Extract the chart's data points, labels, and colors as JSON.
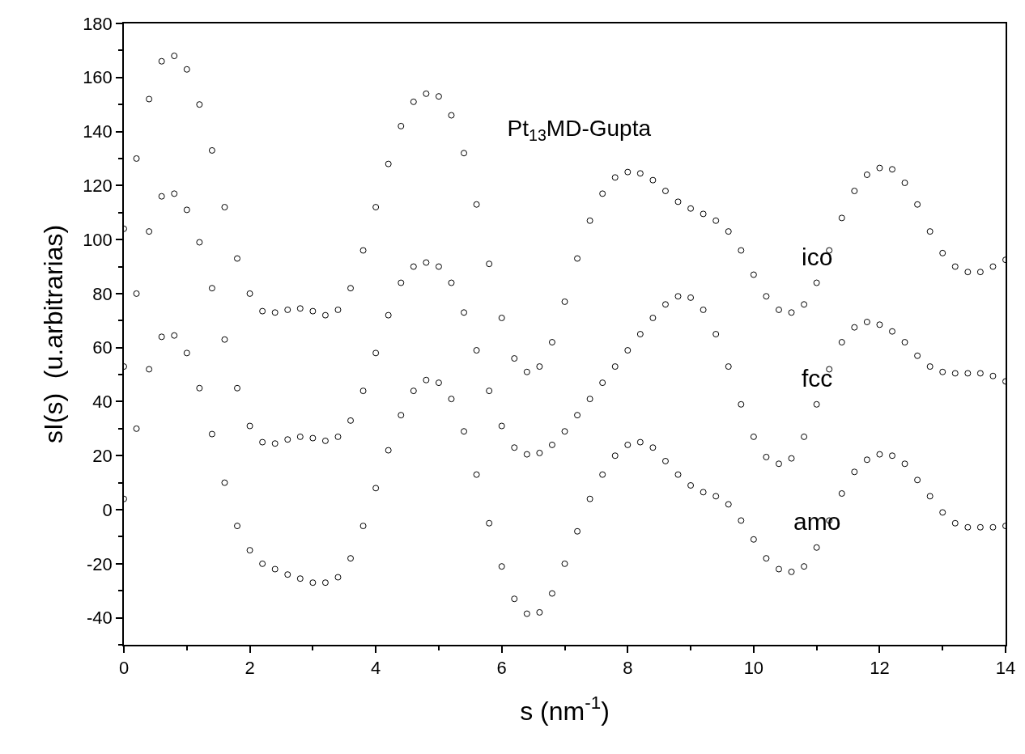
{
  "chart_data": {
    "type": "scatter",
    "title": "Pt$_{13}$MD-Gupta",
    "xlabel": "s (nm$^{-1}$)",
    "ylabel": "sI(s)  (u.arbitrarias)",
    "x": [
      0,
      0.2,
      0.4,
      0.6,
      0.8,
      1.0,
      1.2,
      1.4,
      1.6,
      1.8,
      2.0,
      2.2,
      2.4,
      2.6,
      2.8,
      3.0,
      3.2,
      3.4,
      3.6,
      3.8,
      4.0,
      4.2,
      4.4,
      4.6,
      4.8,
      5.0,
      5.2,
      5.4,
      5.6,
      5.8,
      6.0,
      6.2,
      6.4,
      6.6,
      6.8,
      7.0,
      7.2,
      7.4,
      7.6,
      7.8,
      8.0,
      8.2,
      8.4,
      8.6,
      8.8,
      9.0,
      9.2,
      9.4,
      9.6,
      9.8,
      10.0,
      10.2,
      10.4,
      10.6,
      10.8,
      11.0,
      11.2,
      11.4,
      11.6,
      11.8,
      12.0,
      12.2,
      12.4,
      12.6,
      12.8,
      13.0,
      13.2,
      13.4,
      13.6,
      13.8,
      14.0
    ],
    "series": [
      {
        "name": "ico",
        "color": "#000000",
        "values": [
          104,
          130,
          152,
          166,
          168,
          163,
          150,
          133,
          112,
          93,
          80,
          73.5,
          73,
          74,
          74.5,
          73.5,
          72,
          74,
          82,
          96,
          112,
          128,
          142,
          151,
          154,
          153,
          146,
          132,
          113,
          91,
          71,
          56,
          51,
          53,
          62,
          77,
          93,
          107,
          117,
          123,
          125,
          124.5,
          122,
          118,
          114,
          111.5,
          109.5,
          107,
          103,
          96,
          87,
          79,
          74,
          73,
          76,
          84,
          96,
          108,
          118,
          124,
          126.5,
          126,
          121,
          113,
          103,
          95,
          90,
          88,
          88,
          90,
          92.5
        ]
      },
      {
        "name": "fcc",
        "color": "#000000",
        "values": [
          53,
          80,
          103,
          116,
          117,
          111,
          99,
          82,
          63,
          45,
          31,
          25,
          24.5,
          26,
          27,
          26.5,
          25.5,
          27,
          33,
          44,
          58,
          72,
          84,
          90,
          91.5,
          90,
          84,
          73,
          59,
          44,
          31,
          23,
          20.5,
          21,
          24,
          29,
          35,
          41,
          47,
          53,
          59,
          65,
          71,
          76,
          79,
          78.5,
          74,
          65,
          53,
          39,
          27,
          19.5,
          17,
          19,
          27,
          39,
          52,
          62,
          67.5,
          69.5,
          68.5,
          66,
          62,
          57,
          53,
          51,
          50.5,
          50.5,
          50.5,
          49.5,
          47.5
        ]
      },
      {
        "name": "amo",
        "color": "#000000",
        "values": [
          4,
          30,
          52,
          64,
          64.5,
          58,
          45,
          28,
          10,
          -6,
          -15,
          -20,
          -22,
          -24,
          -25.5,
          -27,
          -27,
          -25,
          -18,
          -6,
          8,
          22,
          35,
          44,
          48,
          47,
          41,
          29,
          13,
          -5,
          -21,
          -33,
          -38.5,
          -38,
          -31,
          -20,
          -8,
          4,
          13,
          20,
          24,
          25,
          23,
          18,
          13,
          9,
          6.5,
          5,
          2,
          -4,
          -11,
          -18,
          -22,
          -23,
          -21,
          -14,
          -4,
          6,
          14,
          18.5,
          20.5,
          20,
          17,
          11,
          5,
          -1,
          -5,
          -6.5,
          -6.5,
          -6.5,
          -6
        ]
      }
    ],
    "xlim": [
      0,
      14
    ],
    "ylim": [
      -50,
      180
    ],
    "xticks": [
      0,
      {
        "value": 1,
        "label": null
      },
      2,
      {
        "value": 3,
        "label": null
      },
      4,
      {
        "value": 5,
        "label": null
      },
      6,
      {
        "value": 7,
        "label": null
      },
      8,
      {
        "value": 9,
        "label": null
      },
      10,
      {
        "value": 11,
        "label": null
      },
      12,
      {
        "value": 13,
        "label": null
      },
      14
    ],
    "yticks": [
      {
        "value": -50,
        "label": null
      },
      -40,
      {
        "value": -30,
        "label": null
      },
      -20,
      {
        "value": -10,
        "label": null
      },
      0,
      {
        "value": 10,
        "label": null
      },
      20,
      {
        "value": 30,
        "label": null
      },
      40,
      {
        "value": 50,
        "label": null
      },
      60,
      {
        "value": 70,
        "label": null
      },
      80,
      {
        "value": 90,
        "label": null
      },
      100,
      {
        "value": 110,
        "label": null
      },
      120,
      {
        "value": 130,
        "label": null
      },
      140,
      {
        "value": 150,
        "label": null
      },
      160,
      {
        "value": 170,
        "label": null
      },
      180
    ],
    "marker": "circle",
    "legend": false
  }
}
